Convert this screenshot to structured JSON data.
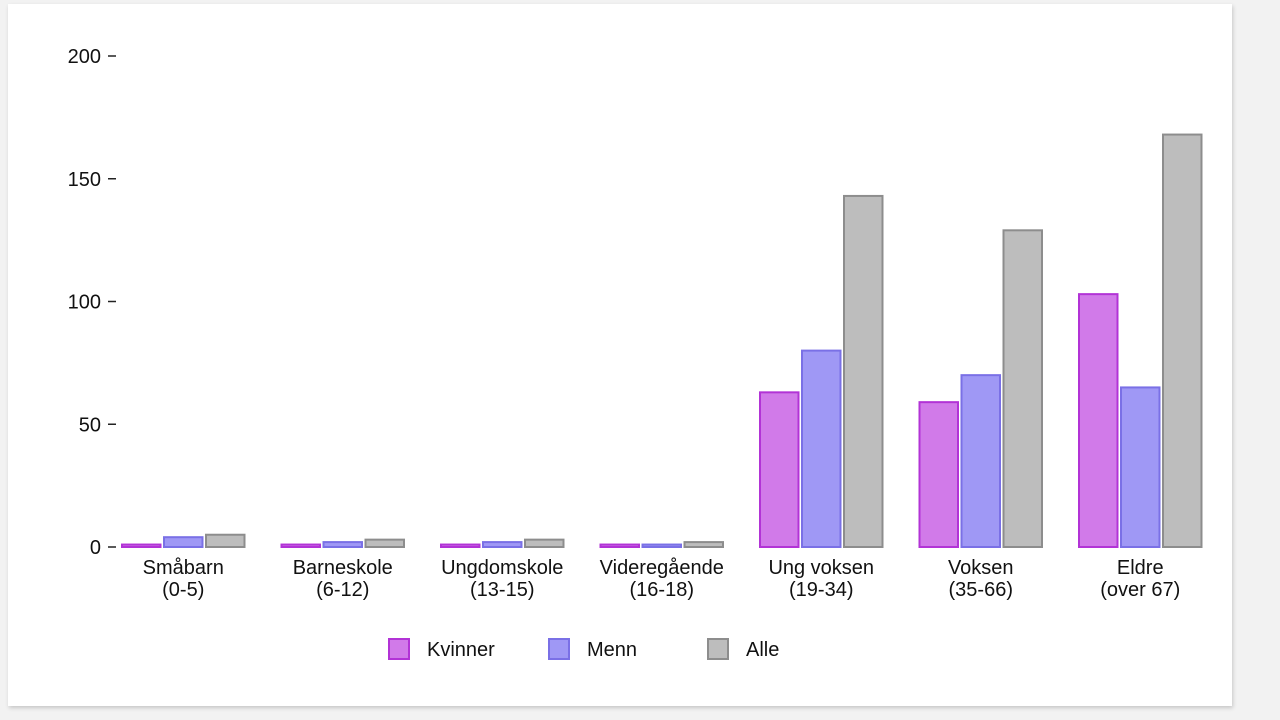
{
  "chart_data": {
    "type": "bar",
    "categories": [
      [
        "Småbarn",
        "(0-5)"
      ],
      [
        "Barneskole",
        "(6-12)"
      ],
      [
        "Ungdomskole",
        "(13-15)"
      ],
      [
        "Videregående",
        "(16-18)"
      ],
      [
        "Ung voksen",
        "(19-34)"
      ],
      [
        "Voksen",
        "(35-66)"
      ],
      [
        "Eldre",
        "(over 67)"
      ]
    ],
    "series": [
      {
        "name": "Kvinner",
        "color": "#d17ae9",
        "stroke": "#b233d6",
        "values": [
          1,
          1,
          1,
          1,
          63,
          59,
          103
        ]
      },
      {
        "name": "Menn",
        "color": "#9f98f5",
        "stroke": "#7a70e6",
        "values": [
          4,
          2,
          2,
          1,
          80,
          70,
          65
        ]
      },
      {
        "name": "Alle",
        "color": "#bdbdbd",
        "stroke": "#8d8d8d",
        "values": [
          5,
          3,
          3,
          2,
          143,
          129,
          168
        ]
      }
    ],
    "yticks": [
      0,
      50,
      100,
      150,
      200
    ],
    "ylim": [
      0,
      200
    ],
    "legend_position": "bottom-center",
    "grid": false
  }
}
